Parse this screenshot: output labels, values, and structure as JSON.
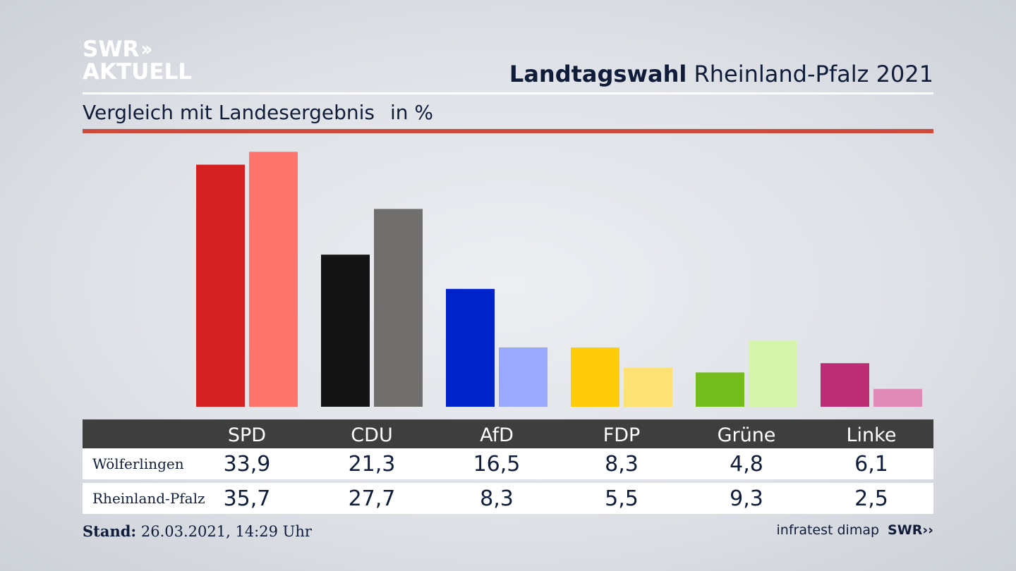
{
  "header": {
    "logo_line1": "SWR",
    "logo_line2": "AKTUELL",
    "title_bold": "Landtagswahl",
    "title_rest": "Rheinland-Pfalz 2021",
    "subtitle": "Vergleich mit Landesergebnis",
    "unit": "in %"
  },
  "colors": {
    "accent_rule": "#cf4a3c",
    "table_header": "#3e3e3e"
  },
  "chart_data": {
    "type": "bar",
    "title": "Landtagswahl Rheinland-Pfalz 2021",
    "subtitle": "Vergleich mit Landesergebnis",
    "ylabel": "in %",
    "categories": [
      "SPD",
      "CDU",
      "AfD",
      "FDP",
      "Grüne",
      "Linke"
    ],
    "series": [
      {
        "name": "Wölferlingen",
        "values": [
          33.9,
          21.3,
          16.5,
          8.3,
          4.8,
          6.1
        ],
        "colors": [
          "#d42020",
          "#141414",
          "#0022c9",
          "#ffcc0a",
          "#74bb1c",
          "#bd2d73"
        ]
      },
      {
        "name": "Rheinland-Pfalz",
        "values": [
          35.7,
          27.7,
          8.3,
          5.5,
          9.3,
          2.5
        ],
        "colors": [
          "#ff756e",
          "#706f6e",
          "#9aa8ff",
          "#fde174",
          "#d5f5ac",
          "#e08ab8"
        ]
      }
    ],
    "grid": false,
    "legend": "table-below"
  },
  "table": {
    "headers": [
      "SPD",
      "CDU",
      "AfD",
      "FDP",
      "Grüne",
      "Linke"
    ],
    "rows": [
      {
        "label": "Wölferlingen",
        "values": [
          "33,9",
          "21,3",
          "16,5",
          "8,3",
          "4,8",
          "6,1"
        ]
      },
      {
        "label": "Rheinland-Pfalz",
        "values": [
          "35,7",
          "27,7",
          "8,3",
          "5,5",
          "9,3",
          "2,5"
        ]
      }
    ]
  },
  "footer": {
    "stand_label": "Stand:",
    "stand_value": "26.03.2021, 14:29 Uhr",
    "source": "infratest dimap",
    "brand": "SWR"
  }
}
